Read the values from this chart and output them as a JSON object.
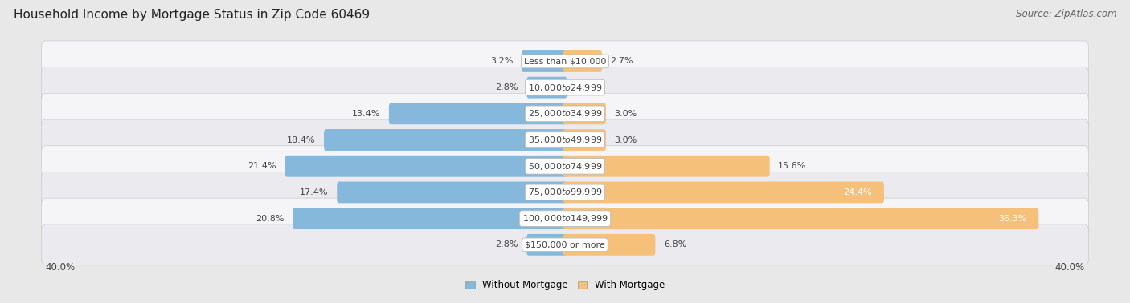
{
  "title": "Household Income by Mortgage Status in Zip Code 60469",
  "source": "Source: ZipAtlas.com",
  "categories": [
    "Less than $10,000",
    "$10,000 to $24,999",
    "$25,000 to $34,999",
    "$35,000 to $49,999",
    "$50,000 to $74,999",
    "$75,000 to $99,999",
    "$100,000 to $149,999",
    "$150,000 or more"
  ],
  "without_mortgage": [
    3.2,
    2.8,
    13.4,
    18.4,
    21.4,
    17.4,
    20.8,
    2.8
  ],
  "with_mortgage": [
    2.7,
    0.0,
    3.0,
    3.0,
    15.6,
    24.4,
    36.3,
    6.8
  ],
  "without_mortgage_color": "#85b8db",
  "with_mortgage_color": "#f5c07a",
  "axis_limit": 40.0,
  "bg_color": "#e8e8e8",
  "row_bg_even": "#f5f5f7",
  "row_bg_odd": "#eaeaef",
  "label_color_dark": "#444444",
  "label_color_white": "#ffffff",
  "legend_label_without": "Without Mortgage",
  "legend_label_with": "With Mortgage",
  "title_fontsize": 11,
  "source_fontsize": 8.5,
  "bar_label_fontsize": 8,
  "category_fontsize": 8,
  "axis_label_fontsize": 8.5,
  "bar_height": 0.52
}
